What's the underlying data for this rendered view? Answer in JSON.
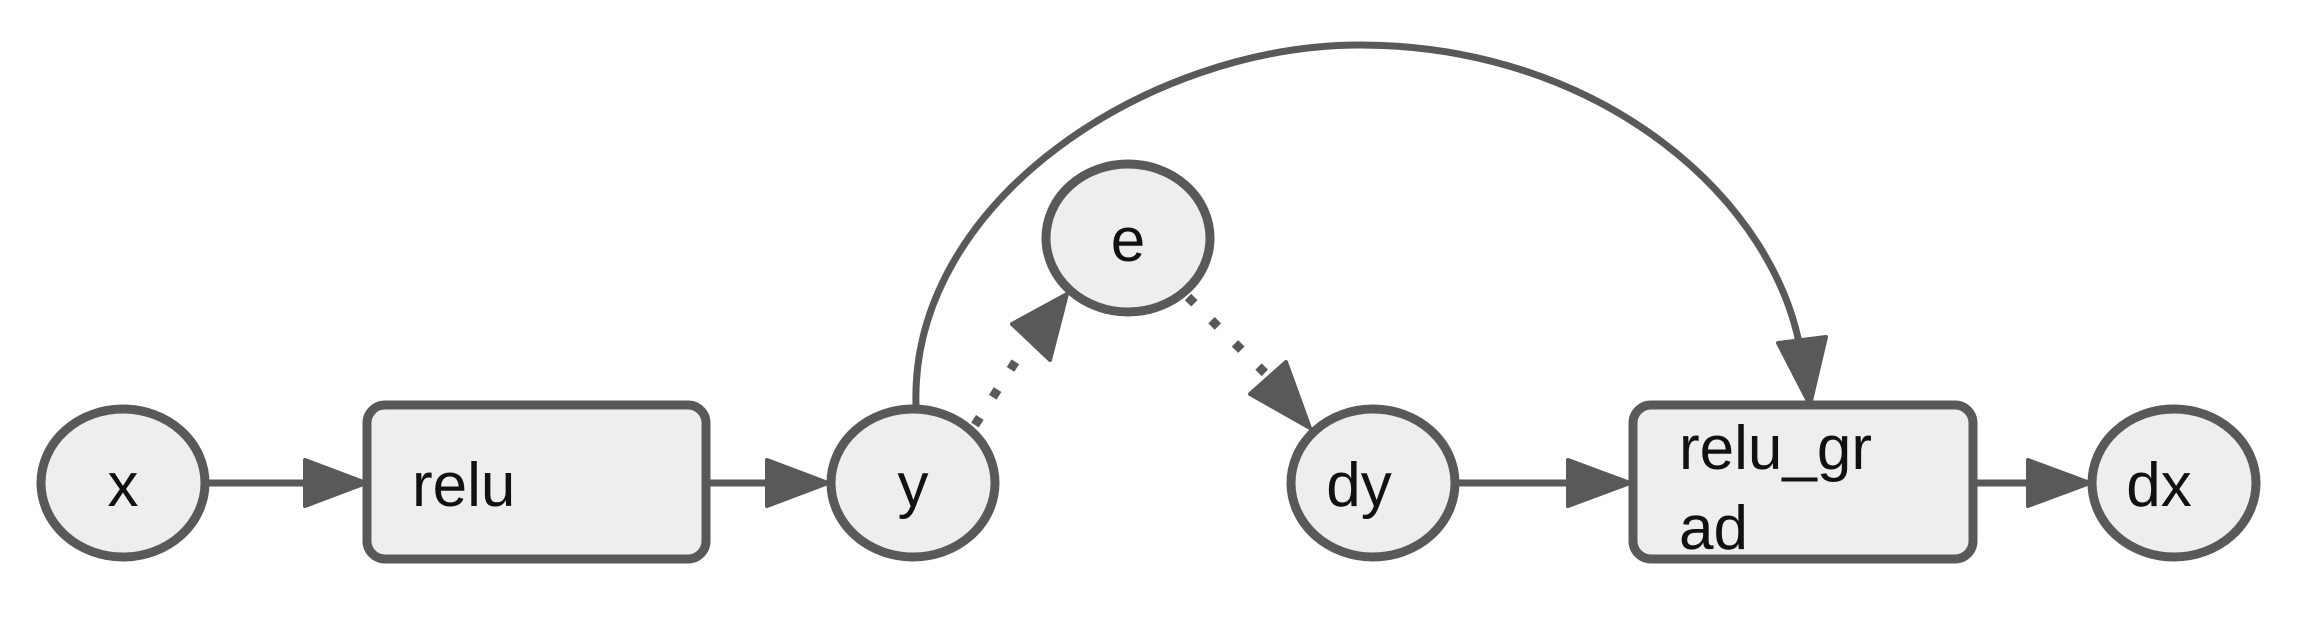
{
  "nodes": {
    "x": "x",
    "relu": "relu",
    "y": "y",
    "e": "e",
    "dy": "dy",
    "relu_grad_line1": "relu_gr",
    "relu_grad_line2": "ad",
    "dx": "dx"
  },
  "colors": {
    "node_fill": "#eeeeee",
    "stroke": "#595959",
    "text": "#111111"
  }
}
